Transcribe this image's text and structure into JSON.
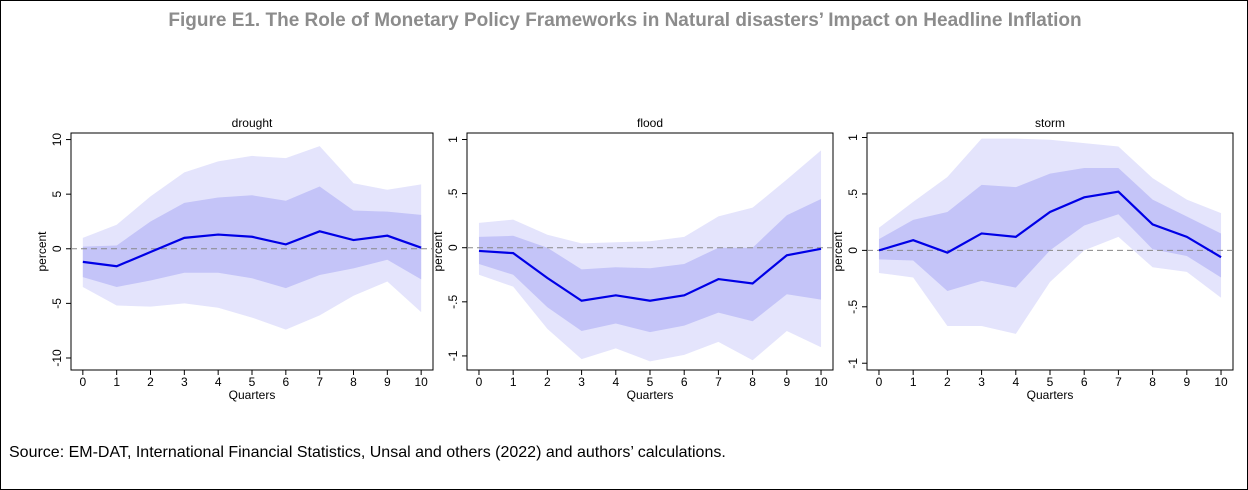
{
  "header": {
    "title": "Figure E1. The Role of Monetary Policy Frameworks in Natural disasters’ Impact on Headline Inflation"
  },
  "chart_data": [
    {
      "type": "line",
      "title": "drought",
      "xlabel": "Quarters",
      "ylabel": "percent",
      "x": [
        0,
        1,
        2,
        3,
        4,
        5,
        6,
        7,
        8,
        9,
        10
      ],
      "values": [
        -1.2,
        -1.6,
        -0.3,
        1.0,
        1.3,
        1.1,
        0.4,
        1.6,
        0.8,
        1.2,
        0.1
      ],
      "color": "#0000e6",
      "band_inner": {
        "color": "#c4c4f8",
        "lower": [
          -2.6,
          -3.5,
          -2.9,
          -2.2,
          -2.2,
          -2.7,
          -3.6,
          -2.4,
          -1.8,
          -1.0,
          -2.8
        ],
        "upper": [
          0.2,
          0.3,
          2.5,
          4.2,
          4.7,
          4.9,
          4.4,
          5.7,
          3.5,
          3.4,
          3.1
        ]
      },
      "band_outer": {
        "color": "#e4e4fc",
        "lower": [
          -3.5,
          -5.2,
          -5.3,
          -5.0,
          -5.4,
          -6.3,
          -7.4,
          -6.1,
          -4.3,
          -3.0,
          -5.8
        ],
        "upper": [
          1.0,
          2.2,
          4.8,
          7.0,
          8.0,
          8.5,
          8.3,
          9.4,
          6.0,
          5.4,
          5.9
        ]
      },
      "refline": 0,
      "xlim": [
        -0.35,
        10.35
      ],
      "ylim": [
        -11.1,
        10.6
      ],
      "xticks": [
        0,
        1,
        2,
        3,
        4,
        5,
        6,
        7,
        8,
        9,
        10
      ],
      "yticks": [
        -10,
        -5,
        0,
        5,
        10
      ]
    },
    {
      "type": "line",
      "title": "flood",
      "xlabel": "Quarters",
      "ylabel": "percent",
      "x": [
        0,
        1,
        2,
        3,
        4,
        5,
        6,
        7,
        8,
        9,
        10
      ],
      "values": [
        -0.03,
        -0.05,
        -0.28,
        -0.49,
        -0.44,
        -0.49,
        -0.44,
        -0.29,
        -0.33,
        -0.07,
        -0.01
      ],
      "color": "#0000e6",
      "band_inner": {
        "color": "#c4c4f8",
        "lower": [
          -0.15,
          -0.25,
          -0.55,
          -0.77,
          -0.7,
          -0.78,
          -0.72,
          -0.6,
          -0.68,
          -0.43,
          -0.48
        ],
        "upper": [
          0.1,
          0.11,
          0.0,
          -0.2,
          -0.18,
          -0.19,
          -0.15,
          0.0,
          0.0,
          0.3,
          0.45
        ]
      },
      "band_outer": {
        "color": "#e4e4fc",
        "lower": [
          -0.25,
          -0.36,
          -0.75,
          -1.03,
          -0.93,
          -1.05,
          -0.99,
          -0.87,
          -1.04,
          -0.77,
          -0.92
        ],
        "upper": [
          0.23,
          0.26,
          0.12,
          0.04,
          0.05,
          0.06,
          0.1,
          0.29,
          0.37,
          0.63,
          0.9
        ]
      },
      "refline": 0,
      "xlim": [
        -0.35,
        10.35
      ],
      "ylim": [
        -1.13,
        1.06
      ],
      "xticks": [
        0,
        1,
        2,
        3,
        4,
        5,
        6,
        7,
        8,
        9,
        10
      ],
      "yticks": [
        -1,
        {
          "value": -0.5,
          "label": "-.5"
        },
        0,
        {
          "value": 0.5,
          "label": ".5"
        },
        1
      ]
    },
    {
      "type": "line",
      "title": "storm",
      "xlabel": "Quarters",
      "ylabel": "percent",
      "x": [
        0,
        1,
        2,
        3,
        4,
        5,
        6,
        7,
        8,
        9,
        10
      ],
      "values": [
        0.0,
        0.09,
        -0.02,
        0.15,
        0.12,
        0.34,
        0.47,
        0.52,
        0.23,
        0.12,
        -0.06
      ],
      "color": "#0000e6",
      "band_inner": {
        "color": "#c4c4f8",
        "lower": [
          -0.08,
          -0.09,
          -0.36,
          -0.27,
          -0.33,
          0.0,
          0.22,
          0.32,
          0.01,
          -0.05,
          -0.24
        ],
        "upper": [
          0.1,
          0.27,
          0.34,
          0.58,
          0.56,
          0.68,
          0.73,
          0.73,
          0.45,
          0.3,
          0.15
        ]
      },
      "band_outer": {
        "color": "#e4e4fc",
        "lower": [
          -0.2,
          -0.24,
          -0.67,
          -0.67,
          -0.74,
          -0.28,
          0.0,
          0.12,
          -0.15,
          -0.19,
          -0.42
        ],
        "upper": [
          0.2,
          0.43,
          0.65,
          0.99,
          0.99,
          0.98,
          0.95,
          0.92,
          0.64,
          0.45,
          0.33
        ]
      },
      "refline": 0,
      "xlim": [
        -0.35,
        10.35
      ],
      "ylim": [
        -1.06,
        1.04
      ],
      "xticks": [
        0,
        1,
        2,
        3,
        4,
        5,
        6,
        7,
        8,
        9,
        10
      ],
      "yticks": [
        -1,
        {
          "value": -0.5,
          "label": "-.5"
        },
        0,
        {
          "value": 0.5,
          "label": ".5"
        },
        1
      ]
    }
  ],
  "source": "Source: EM-DAT, International Financial Statistics, Unsal and others (2022) and authors’ calculations."
}
